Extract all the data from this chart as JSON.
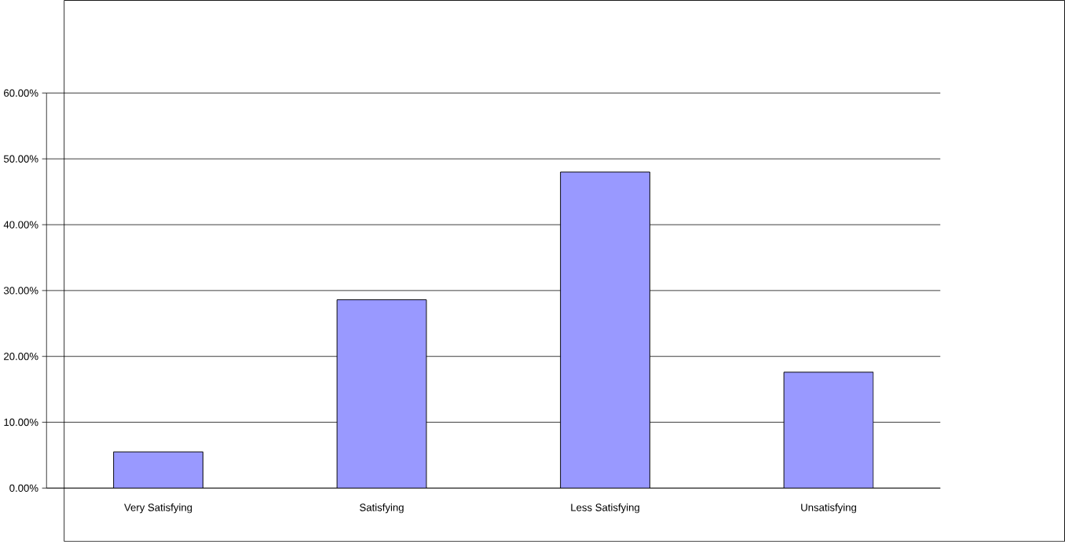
{
  "chart_data": {
    "type": "bar",
    "categories": [
      "Very Satisfying",
      "Satisfying",
      "Less Satisfying",
      "Unsatisfying"
    ],
    "values": [
      5.5,
      28.6,
      48.0,
      17.6
    ],
    "color": "#9999ff",
    "ylim": [
      0,
      60
    ],
    "yticks": [
      {
        "value": 0,
        "label": "0.00%"
      },
      {
        "value": 10,
        "label": "10.00%"
      },
      {
        "value": 20,
        "label": "20.00%"
      },
      {
        "value": 30,
        "label": "30.00%"
      },
      {
        "value": 40,
        "label": "40.00%"
      },
      {
        "value": 50,
        "label": "50.00%"
      },
      {
        "value": 60,
        "label": "60.00%"
      }
    ],
    "grid": "y"
  }
}
